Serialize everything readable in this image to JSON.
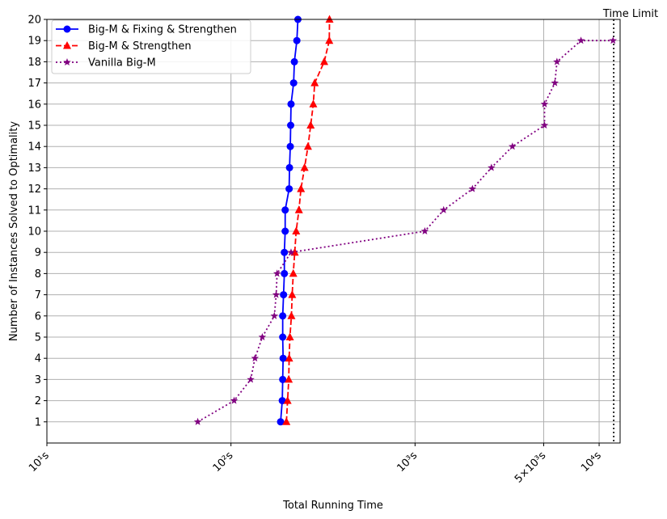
{
  "chart_data": {
    "type": "line",
    "title": "",
    "xlabel": "Total Running Time",
    "ylabel": "Number of Instances Solved to Optimality",
    "x_scale": "log",
    "xlim_seconds": [
      10,
      13000
    ],
    "ylim": [
      0,
      20
    ],
    "grid": true,
    "legend_position": "top-left",
    "x_ticks": [
      {
        "value": 10,
        "label": "10¹s"
      },
      {
        "value": 100,
        "label": "10²s"
      },
      {
        "value": 1000,
        "label": "10³s"
      },
      {
        "value": 5000,
        "label": "5×10³s"
      },
      {
        "value": 10000,
        "label": "10⁴s"
      }
    ],
    "y_ticks": [
      1,
      2,
      3,
      4,
      5,
      6,
      7,
      8,
      9,
      10,
      11,
      12,
      13,
      14,
      15,
      16,
      17,
      18,
      19,
      20
    ],
    "time_limit": {
      "value": 12000,
      "label": "Time Limit"
    },
    "series": [
      {
        "name": "Big-M & Fixing & Strengthen",
        "color": "#0000ff",
        "line_style": "solid",
        "marker": "circle",
        "points": [
          [
            186,
            1
          ],
          [
            190,
            2
          ],
          [
            191,
            3
          ],
          [
            192,
            4
          ],
          [
            191,
            5
          ],
          [
            191,
            6
          ],
          [
            193,
            7
          ],
          [
            195,
            8
          ],
          [
            195,
            9
          ],
          [
            197,
            10
          ],
          [
            197,
            11
          ],
          [
            207,
            12
          ],
          [
            208,
            13
          ],
          [
            210,
            14
          ],
          [
            211,
            15
          ],
          [
            212,
            16
          ],
          [
            219,
            17
          ],
          [
            221,
            18
          ],
          [
            228,
            19
          ],
          [
            231,
            20
          ]
        ]
      },
      {
        "name": "Big-M & Strengthen",
        "color": "#ff0000",
        "line_style": "dashed",
        "marker": "triangle",
        "points": [
          [
            200,
            1
          ],
          [
            203,
            2
          ],
          [
            206,
            3
          ],
          [
            207,
            4
          ],
          [
            209,
            5
          ],
          [
            213,
            6
          ],
          [
            215,
            7
          ],
          [
            218,
            8
          ],
          [
            222,
            9
          ],
          [
            226,
            10
          ],
          [
            234,
            11
          ],
          [
            240,
            12
          ],
          [
            251,
            13
          ],
          [
            262,
            14
          ],
          [
            271,
            15
          ],
          [
            280,
            16
          ],
          [
            285,
            17
          ],
          [
            321,
            18
          ],
          [
            342,
            19
          ],
          [
            343,
            20
          ]
        ]
      },
      {
        "name": "Vanilla Big-M",
        "color": "#800080",
        "line_style": "dotted",
        "marker": "star",
        "points": [
          [
            66,
            1
          ],
          [
            104,
            2
          ],
          [
            128,
            3
          ],
          [
            135,
            4
          ],
          [
            148,
            5
          ],
          [
            172,
            6
          ],
          [
            176,
            7
          ],
          [
            178,
            8
          ],
          [
            212,
            9
          ],
          [
            1130,
            10
          ],
          [
            1430,
            11
          ],
          [
            2050,
            12
          ],
          [
            2600,
            13
          ],
          [
            3380,
            14
          ],
          [
            5050,
            15
          ],
          [
            5050,
            16
          ],
          [
            5750,
            17
          ],
          [
            5900,
            18
          ],
          [
            7970,
            19
          ],
          [
            11900,
            19
          ]
        ]
      }
    ]
  }
}
